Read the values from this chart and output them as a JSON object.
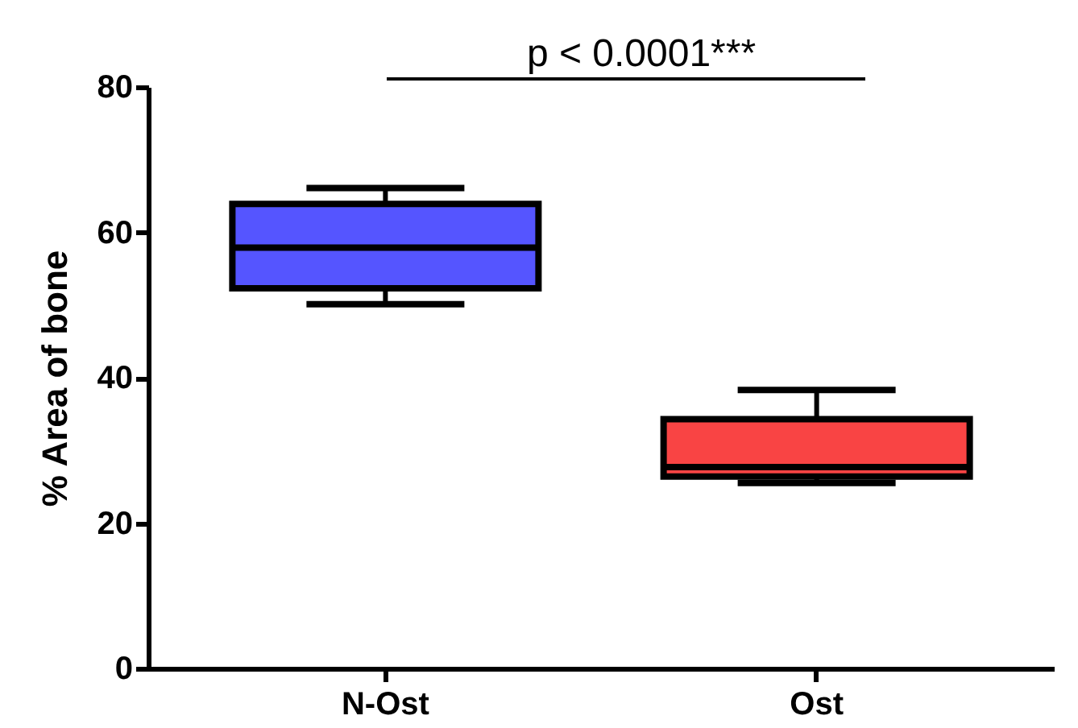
{
  "chart_data": {
    "type": "box",
    "ylabel": "% Area of bone",
    "categories": [
      "N-Ost",
      "Ost"
    ],
    "boxes": [
      {
        "low": 50.1,
        "q1": 52.3,
        "median": 57.9,
        "q3": 63.9,
        "high": 66.1
      },
      {
        "low": 25.5,
        "q1": 26.4,
        "median": 27.7,
        "q3": 34.3,
        "high": 38.3
      }
    ],
    "colors": [
      "#5555ff",
      "#f94444"
    ],
    "ylim": [
      0,
      80
    ],
    "yticks": [
      0,
      20,
      40,
      60,
      80
    ],
    "grid": false,
    "annotations": [
      "p < 0.0001***"
    ]
  }
}
